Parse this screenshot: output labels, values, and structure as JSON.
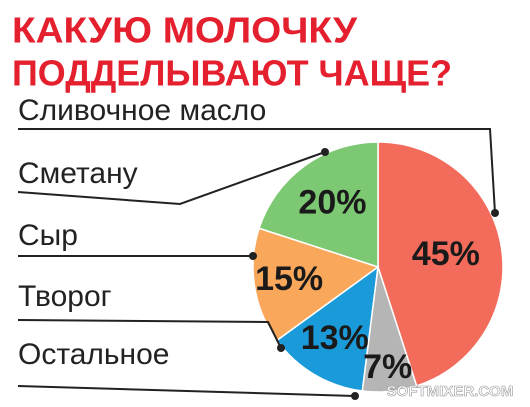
{
  "chart_data": {
    "type": "pie",
    "title": [
      "КАКУЮ МОЛОЧКУ",
      "ПОДДЕЛЫВАЮТ ЧАЩЕ?"
    ],
    "categories": [
      "Сливочное масло",
      "Сметану",
      "Сыр",
      "Творог",
      "Остальное"
    ],
    "values": [
      45,
      20,
      15,
      13,
      7
    ],
    "value_labels": [
      "45%",
      "20%",
      "15%",
      "13%",
      "7%"
    ],
    "colors": [
      "#f26b5b",
      "#7dc873",
      "#f9a75a",
      "#1a9ad9",
      "#b5b5b5"
    ],
    "watermark": "SOFTMIXER.COM"
  }
}
